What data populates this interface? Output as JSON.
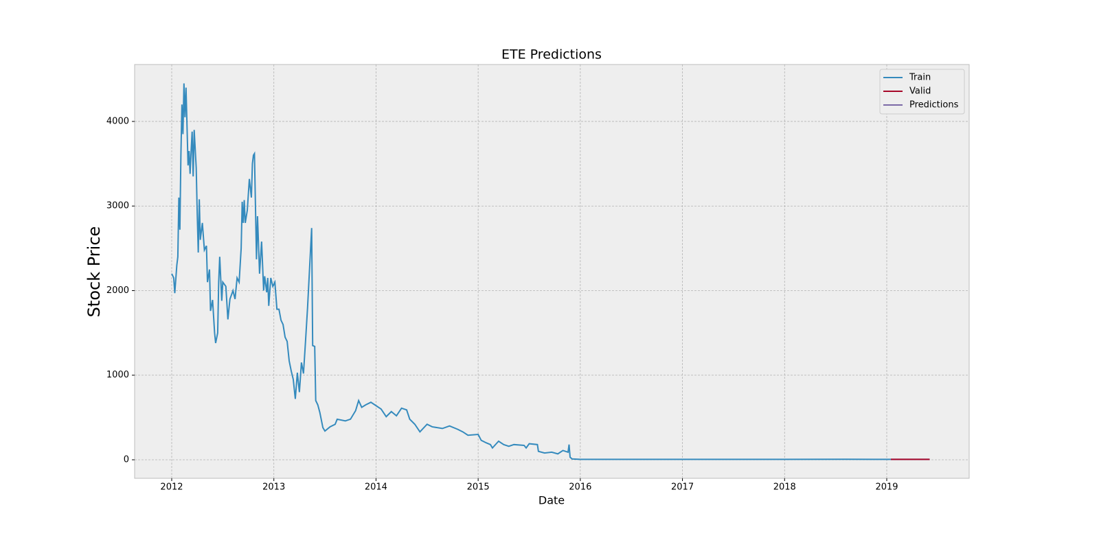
{
  "chart_data": {
    "type": "line",
    "title": "ETE Predictions",
    "x_label": "Date",
    "y_label": "Stock Price",
    "xlim": [
      2011.637,
      2019.807
    ],
    "xticks": [
      2012,
      2013,
      2014,
      2015,
      2016,
      2017,
      2018,
      2019
    ],
    "ylim": [
      -219,
      4673
    ],
    "yticks": [
      0,
      1000,
      2000,
      3000,
      4000
    ],
    "grid": true,
    "legend": "upper right",
    "series": [
      {
        "name": "Train",
        "color": "#348ABD",
        "x": [
          2012.0,
          2012.02,
          2012.03,
          2012.05,
          2012.06,
          2012.07,
          2012.08,
          2012.09,
          2012.1,
          2012.11,
          2012.12,
          2012.13,
          2012.14,
          2012.16,
          2012.17,
          2012.18,
          2012.19,
          2012.2,
          2012.21,
          2012.22,
          2012.24,
          2012.25,
          2012.26,
          2012.27,
          2012.28,
          2012.3,
          2012.32,
          2012.34,
          2012.35,
          2012.37,
          2012.38,
          2012.4,
          2012.42,
          2012.43,
          2012.45,
          2012.46,
          2012.47,
          2012.49,
          2012.5,
          2012.53,
          2012.55,
          2012.57,
          2012.6,
          2012.62,
          2012.64,
          2012.66,
          2012.68,
          2012.69,
          2012.7,
          2012.71,
          2012.72,
          2012.74,
          2012.76,
          2012.78,
          2012.79,
          2012.8,
          2012.81,
          2012.83,
          2012.84,
          2012.86,
          2012.88,
          2012.9,
          2012.91,
          2012.93,
          2012.94,
          2012.95,
          2012.97,
          2012.99,
          2013.01,
          2013.03,
          2013.05,
          2013.07,
          2013.09,
          2013.11,
          2013.13,
          2013.15,
          2013.17,
          2013.19,
          2013.21,
          2013.23,
          2013.25,
          2013.27,
          2013.29,
          2013.31,
          2013.33,
          2013.37,
          2013.38,
          2013.4,
          2013.41,
          2013.43,
          2013.45,
          2013.48,
          2013.5,
          2013.55,
          2013.6,
          2013.62,
          2013.7,
          2013.75,
          2013.8,
          2013.83,
          2013.86,
          2013.9,
          2013.95,
          2014.0,
          2014.05,
          2014.1,
          2014.15,
          2014.2,
          2014.25,
          2014.3,
          2014.33,
          2014.38,
          2014.43,
          2014.5,
          2014.55,
          2014.65,
          2014.72,
          2014.8,
          2014.85,
          2014.9,
          2015.0,
          2015.03,
          2015.08,
          2015.12,
          2015.14,
          2015.2,
          2015.25,
          2015.3,
          2015.35,
          2015.45,
          2015.47,
          2015.5,
          2015.58,
          2015.59,
          2015.65,
          2015.72,
          2015.78,
          2015.83,
          2015.88,
          2015.89,
          2015.9,
          2015.92,
          2016.0,
          2017.0,
          2018.0,
          2018.6,
          2019.04
        ],
        "values": [
          2200,
          2150,
          1970,
          2300,
          2400,
          3100,
          2720,
          3600,
          4200,
          3850,
          4450,
          4050,
          4400,
          3480,
          3650,
          3380,
          3650,
          3880,
          3350,
          3900,
          3450,
          2900,
          2450,
          3080,
          2600,
          2800,
          2480,
          2530,
          2100,
          2250,
          1760,
          1890,
          1500,
          1380,
          1500,
          2100,
          2400,
          1880,
          2100,
          2050,
          1660,
          1900,
          2000,
          1900,
          2150,
          2100,
          2500,
          3050,
          2800,
          3070,
          2800,
          2950,
          3320,
          3100,
          3500,
          3600,
          3620,
          2370,
          2880,
          2200,
          2580,
          2000,
          2170,
          1980,
          2150,
          1820,
          2150,
          2050,
          2100,
          1780,
          1780,
          1650,
          1600,
          1450,
          1400,
          1170,
          1050,
          950,
          720,
          1030,
          800,
          1150,
          1020,
          1400,
          1800,
          2740,
          1350,
          1340,
          700,
          650,
          560,
          380,
          340,
          390,
          420,
          480,
          460,
          480,
          580,
          700,
          620,
          650,
          680,
          640,
          600,
          510,
          570,
          520,
          610,
          590,
          480,
          420,
          330,
          420,
          390,
          370,
          400,
          360,
          330,
          290,
          300,
          230,
          200,
          180,
          140,
          220,
          180,
          160,
          180,
          170,
          140,
          190,
          180,
          100,
          80,
          90,
          70,
          110,
          90,
          180,
          30,
          10,
          5,
          5,
          5,
          6,
          5
        ]
      },
      {
        "name": "Valid",
        "color": "#A60628",
        "x": [
          2019.04,
          2019.2,
          2019.42
        ],
        "values": [
          5,
          5,
          5
        ]
      },
      {
        "name": "Predictions",
        "color": "#7A68A6",
        "x": [
          2019.04,
          2019.2,
          2019.42
        ],
        "values": [
          5,
          5,
          5
        ]
      }
    ]
  }
}
